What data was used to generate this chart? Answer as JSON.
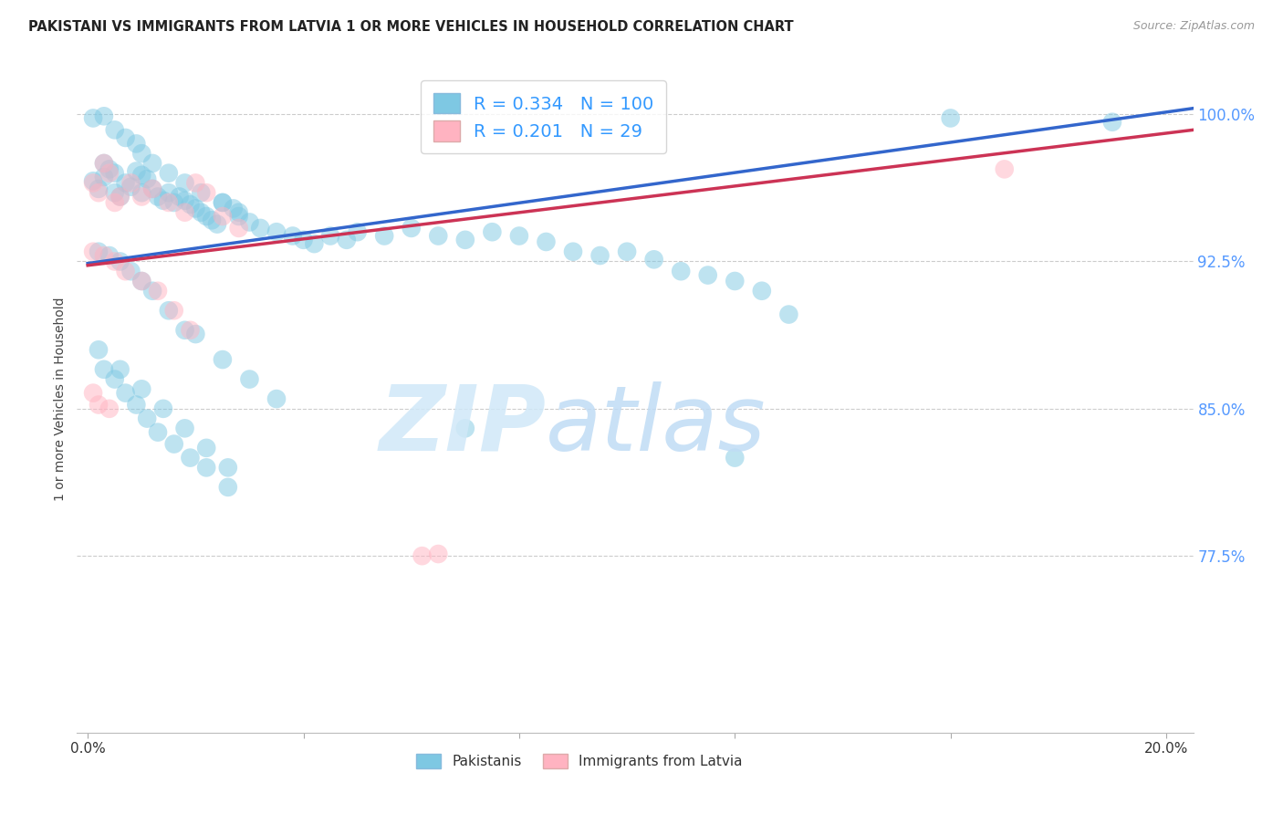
{
  "title": "PAKISTANI VS IMMIGRANTS FROM LATVIA 1 OR MORE VEHICLES IN HOUSEHOLD CORRELATION CHART",
  "source": "Source: ZipAtlas.com",
  "ylabel": "1 or more Vehicles in Household",
  "ytick_labels": [
    "100.0%",
    "92.5%",
    "85.0%",
    "77.5%"
  ],
  "ytick_values": [
    1.0,
    0.925,
    0.85,
    0.775
  ],
  "ylim": [
    0.685,
    1.025
  ],
  "xlim": [
    -0.002,
    0.205
  ],
  "xtick_positions": [
    0.0,
    0.04,
    0.08,
    0.12,
    0.16,
    0.2
  ],
  "xtick_labels": [
    "0.0%",
    "",
    "",
    "",
    "",
    "20.0%"
  ],
  "pakistani_R": 0.334,
  "pakistani_N": 100,
  "latvian_R": 0.201,
  "latvian_N": 29,
  "blue_color": "#7EC8E3",
  "pink_color": "#FFB3C1",
  "blue_line_color": "#3366CC",
  "pink_line_color": "#CC3355",
  "legend_blue_text_color": "#3399FF",
  "legend_pink_text_color": "#3399FF",
  "ytick_color": "#5599FF",
  "grid_color": "#CCCCCC",
  "watermark_zip_color": "#D0E8F8",
  "watermark_atlas_color": "#C0DCF5",
  "pakistani_x": [
    0.001,
    0.002,
    0.003,
    0.003,
    0.004,
    0.005,
    0.005,
    0.006,
    0.007,
    0.008,
    0.009,
    0.01,
    0.01,
    0.011,
    0.012,
    0.013,
    0.014,
    0.015,
    0.016,
    0.017,
    0.018,
    0.019,
    0.02,
    0.021,
    0.022,
    0.023,
    0.024,
    0.025,
    0.027,
    0.028,
    0.03,
    0.032,
    0.035,
    0.038,
    0.04,
    0.042,
    0.045,
    0.048,
    0.05,
    0.055,
    0.06,
    0.065,
    0.07,
    0.075,
    0.08,
    0.085,
    0.09,
    0.095,
    0.1,
    0.105,
    0.11,
    0.115,
    0.12,
    0.125,
    0.13,
    0.002,
    0.004,
    0.006,
    0.008,
    0.01,
    0.012,
    0.015,
    0.018,
    0.02,
    0.025,
    0.03,
    0.035,
    0.003,
    0.005,
    0.007,
    0.009,
    0.011,
    0.013,
    0.016,
    0.019,
    0.022,
    0.026,
    0.001,
    0.003,
    0.005,
    0.007,
    0.009,
    0.01,
    0.012,
    0.015,
    0.018,
    0.021,
    0.025,
    0.028,
    0.002,
    0.006,
    0.01,
    0.014,
    0.018,
    0.022,
    0.026,
    0.07,
    0.12,
    0.16,
    0.19
  ],
  "pakistani_y": [
    0.966,
    0.962,
    0.975,
    0.968,
    0.972,
    0.97,
    0.96,
    0.958,
    0.965,
    0.963,
    0.971,
    0.969,
    0.96,
    0.967,
    0.962,
    0.958,
    0.956,
    0.96,
    0.955,
    0.958,
    0.956,
    0.954,
    0.952,
    0.95,
    0.948,
    0.946,
    0.944,
    0.955,
    0.952,
    0.948,
    0.945,
    0.942,
    0.94,
    0.938,
    0.936,
    0.934,
    0.938,
    0.936,
    0.94,
    0.938,
    0.942,
    0.938,
    0.936,
    0.94,
    0.938,
    0.935,
    0.93,
    0.928,
    0.93,
    0.926,
    0.92,
    0.918,
    0.915,
    0.91,
    0.898,
    0.93,
    0.928,
    0.925,
    0.92,
    0.915,
    0.91,
    0.9,
    0.89,
    0.888,
    0.875,
    0.865,
    0.855,
    0.87,
    0.865,
    0.858,
    0.852,
    0.845,
    0.838,
    0.832,
    0.825,
    0.82,
    0.81,
    0.998,
    0.999,
    0.992,
    0.988,
    0.985,
    0.98,
    0.975,
    0.97,
    0.965,
    0.96,
    0.955,
    0.95,
    0.88,
    0.87,
    0.86,
    0.85,
    0.84,
    0.83,
    0.82,
    0.84,
    0.825,
    0.998,
    0.996
  ],
  "latvian_x": [
    0.001,
    0.002,
    0.003,
    0.004,
    0.005,
    0.006,
    0.008,
    0.01,
    0.012,
    0.015,
    0.018,
    0.02,
    0.022,
    0.025,
    0.028,
    0.001,
    0.003,
    0.005,
    0.007,
    0.01,
    0.013,
    0.016,
    0.019,
    0.002,
    0.004,
    0.062,
    0.065,
    0.001,
    0.17
  ],
  "latvian_y": [
    0.965,
    0.96,
    0.975,
    0.97,
    0.955,
    0.958,
    0.965,
    0.958,
    0.962,
    0.955,
    0.95,
    0.965,
    0.96,
    0.948,
    0.942,
    0.93,
    0.928,
    0.925,
    0.92,
    0.915,
    0.91,
    0.9,
    0.89,
    0.852,
    0.85,
    0.775,
    0.776,
    0.858,
    0.972
  ]
}
